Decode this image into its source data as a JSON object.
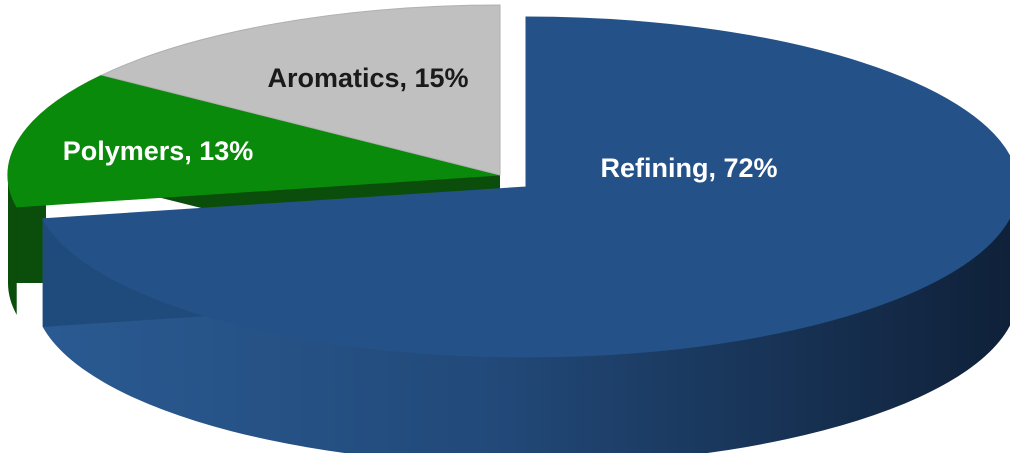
{
  "chart_data": {
    "type": "pie",
    "style": "3d-exploded",
    "slices": [
      {
        "category": "Refining",
        "value": 72,
        "label": "Refining, 72%",
        "color": "#245288",
        "side_color": "#1f3f66",
        "text_color": "#ffffff"
      },
      {
        "category": "Polymers",
        "value": 13,
        "label": "Polymers, 13%",
        "color": "#0a8a0a",
        "side_color": "#0b4d0b",
        "text_color": "#ffffff"
      },
      {
        "category": "Aromatics",
        "value": 15,
        "label": "Aromatics, 15%",
        "color": "#c0c0c0",
        "side_color": "#808080",
        "text_color": "#1a1a1a"
      }
    ],
    "exploded": "Refining",
    "legend": "none",
    "title": ""
  }
}
